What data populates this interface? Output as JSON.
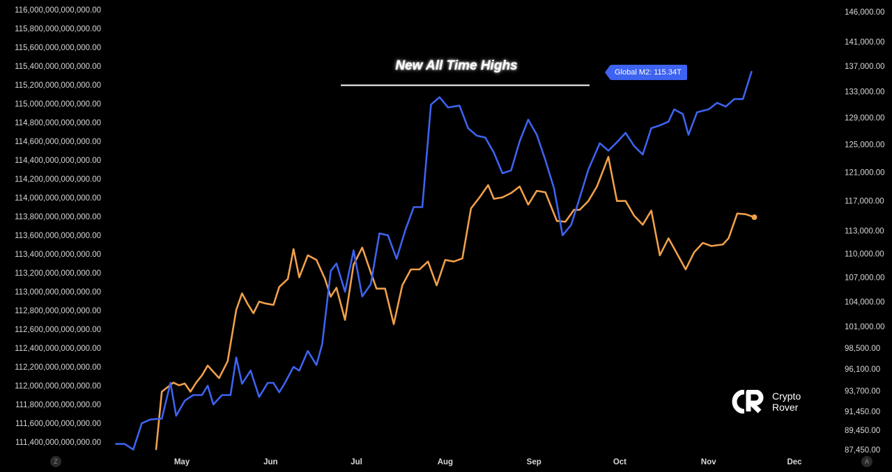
{
  "annotation": "New All Time Highs",
  "price_tag": "Global M2: 115.34T",
  "logo": {
    "line1": "Crypto",
    "line2": "Rover"
  },
  "corner_left": "Z",
  "corner_right": "A",
  "colors": {
    "m2": "#3d63f0",
    "btc": "#f0a04b",
    "background": "#000000",
    "annotation_line": "#ffffff"
  },
  "chart_data": {
    "type": "line",
    "title": "",
    "annotation": "New All Time Highs",
    "x_tick_labels": [
      "May",
      "Jun",
      "Jul",
      "Aug",
      "Sep",
      "Oct",
      "Nov",
      "Dec"
    ],
    "left_axis_ticks": [
      {
        "label": "116,000,000,000,000.00",
        "value": 116000
      },
      {
        "label": "115,800,000,000,000.00",
        "value": 115800
      },
      {
        "label": "115,600,000,000,000.00",
        "value": 115600
      },
      {
        "label": "115,400,000,000,000.00",
        "value": 115400
      },
      {
        "label": "115,200,000,000,000.00",
        "value": 115200
      },
      {
        "label": "115,000,000,000,000.00",
        "value": 115000
      },
      {
        "label": "114,800,000,000,000.00",
        "value": 114800
      },
      {
        "label": "114,600,000,000,000.00",
        "value": 114600
      },
      {
        "label": "114,400,000,000,000.00",
        "value": 114400
      },
      {
        "label": "114,200,000,000,000.00",
        "value": 114200
      },
      {
        "label": "114,000,000,000,000.00",
        "value": 114000
      },
      {
        "label": "113,800,000,000,000.00",
        "value": 113800
      },
      {
        "label": "113,600,000,000,000.00",
        "value": 113600
      },
      {
        "label": "113,400,000,000,000.00",
        "value": 113400
      },
      {
        "label": "113,200,000,000,000.00",
        "value": 113200
      },
      {
        "label": "113,000,000,000,000.00",
        "value": 113000
      },
      {
        "label": "112,800,000,000,000.00",
        "value": 112800
      },
      {
        "label": "112,600,000,000,000.00",
        "value": 112600
      },
      {
        "label": "112,400,000,000,000.00",
        "value": 112400
      },
      {
        "label": "112,200,000,000,000.00",
        "value": 112200
      },
      {
        "label": "112,000,000,000,000.00",
        "value": 112000
      },
      {
        "label": "111,800,000,000,000.00",
        "value": 111800
      },
      {
        "label": "111,600,000,000,000.00",
        "value": 111600
      },
      {
        "label": "111,400,000,000,000.00",
        "value": 111400
      }
    ],
    "right_axis_ticks": [
      {
        "label": "146,000.00",
        "value": 146000
      },
      {
        "label": "141,000.00",
        "value": 141000
      },
      {
        "label": "137,000.00",
        "value": 137000
      },
      {
        "label": "133,000.00",
        "value": 133000
      },
      {
        "label": "129,000.00",
        "value": 129000
      },
      {
        "label": "125,000.00",
        "value": 125000
      },
      {
        "label": "121,000.00",
        "value": 121000
      },
      {
        "label": "117,000.00",
        "value": 117000
      },
      {
        "label": "113,000.00",
        "value": 113000
      },
      {
        "label": "110,000.00",
        "value": 110000
      },
      {
        "label": "107,000.00",
        "value": 107000
      },
      {
        "label": "104,000.00",
        "value": 104000
      },
      {
        "label": "101,000.00",
        "value": 101000
      },
      {
        "label": "98,500.00",
        "value": 98500
      },
      {
        "label": "96,100.00",
        "value": 96100
      },
      {
        "label": "93,700.00",
        "value": 93700
      },
      {
        "label": "91,450.00",
        "value": 91450
      },
      {
        "label": "89,450.00",
        "value": 89450
      },
      {
        "label": "87,450.00",
        "value": 87450
      }
    ],
    "grid": false,
    "legend": "none",
    "series": [
      {
        "axis": "left",
        "color": "#3d63f0",
        "unit": "billions",
        "points": [
          [
            "2025-04-08",
            111380
          ],
          [
            "2025-04-11",
            111380
          ],
          [
            "2025-04-14",
            111320
          ],
          [
            "2025-04-17",
            111600
          ],
          [
            "2025-04-20",
            111640
          ],
          [
            "2025-04-24",
            111650
          ],
          [
            "2025-04-27",
            112030
          ],
          [
            "2025-04-29",
            111680
          ],
          [
            "2025-05-02",
            111840
          ],
          [
            "2025-05-05",
            111900
          ],
          [
            "2025-05-08",
            111900
          ],
          [
            "2025-05-10",
            112000
          ],
          [
            "2025-05-12",
            111800
          ],
          [
            "2025-05-15",
            111900
          ],
          [
            "2025-05-18",
            111900
          ],
          [
            "2025-05-20",
            112300
          ],
          [
            "2025-05-22",
            112020
          ],
          [
            "2025-05-25",
            112160
          ],
          [
            "2025-05-28",
            111880
          ],
          [
            "2025-05-31",
            112030
          ],
          [
            "2025-06-02",
            112030
          ],
          [
            "2025-06-04",
            111930
          ],
          [
            "2025-06-06",
            112030
          ],
          [
            "2025-06-09",
            112200
          ],
          [
            "2025-06-11",
            112160
          ],
          [
            "2025-06-14",
            112370
          ],
          [
            "2025-06-17",
            112220
          ],
          [
            "2025-06-19",
            112440
          ],
          [
            "2025-06-22",
            113220
          ],
          [
            "2025-06-24",
            113300
          ],
          [
            "2025-06-27",
            113000
          ],
          [
            "2025-06-30",
            113440
          ],
          [
            "2025-07-03",
            112950
          ],
          [
            "2025-07-06",
            113080
          ],
          [
            "2025-07-09",
            113620
          ],
          [
            "2025-07-12",
            113600
          ],
          [
            "2025-07-15",
            113350
          ],
          [
            "2025-07-18",
            113650
          ],
          [
            "2025-07-21",
            113900
          ],
          [
            "2025-07-24",
            113900
          ],
          [
            "2025-07-27",
            114990
          ],
          [
            "2025-07-30",
            115070
          ],
          [
            "2025-08-02",
            114960
          ],
          [
            "2025-08-06",
            114980
          ],
          [
            "2025-08-09",
            114740
          ],
          [
            "2025-08-12",
            114660
          ],
          [
            "2025-08-15",
            114640
          ],
          [
            "2025-08-18",
            114480
          ],
          [
            "2025-08-21",
            114260
          ],
          [
            "2025-08-24",
            114290
          ],
          [
            "2025-08-27",
            114600
          ],
          [
            "2025-08-30",
            114830
          ],
          [
            "2025-09-02",
            114670
          ],
          [
            "2025-09-05",
            114400
          ],
          [
            "2025-09-08",
            114100
          ],
          [
            "2025-09-11",
            113600
          ],
          [
            "2025-09-14",
            113710
          ],
          [
            "2025-09-17",
            114000
          ],
          [
            "2025-09-20",
            114300
          ],
          [
            "2025-09-24",
            114580
          ],
          [
            "2025-09-27",
            114500
          ],
          [
            "2025-09-30",
            114590
          ],
          [
            "2025-10-03",
            114690
          ],
          [
            "2025-10-06",
            114550
          ],
          [
            "2025-10-09",
            114460
          ],
          [
            "2025-10-12",
            114740
          ],
          [
            "2025-10-15",
            114770
          ],
          [
            "2025-10-18",
            114810
          ],
          [
            "2025-10-20",
            114940
          ],
          [
            "2025-10-23",
            114890
          ],
          [
            "2025-10-25",
            114670
          ],
          [
            "2025-10-28",
            114910
          ],
          [
            "2025-11-01",
            114940
          ],
          [
            "2025-11-04",
            115010
          ],
          [
            "2025-11-07",
            114970
          ],
          [
            "2025-11-10",
            115050
          ],
          [
            "2025-11-13",
            115050
          ],
          [
            "2025-11-16",
            115340
          ]
        ]
      },
      {
        "axis": "right",
        "color": "#f0a04b",
        "unit": "USD",
        "points": [
          [
            "2025-04-22",
            87500
          ],
          [
            "2025-04-24",
            93600
          ],
          [
            "2025-04-26",
            94100
          ],
          [
            "2025-04-28",
            94600
          ],
          [
            "2025-04-30",
            94300
          ],
          [
            "2025-05-02",
            94500
          ],
          [
            "2025-05-04",
            93600
          ],
          [
            "2025-05-06",
            94600
          ],
          [
            "2025-05-08",
            95400
          ],
          [
            "2025-05-10",
            96500
          ],
          [
            "2025-05-12",
            95800
          ],
          [
            "2025-05-14",
            95100
          ],
          [
            "2025-05-17",
            97000
          ],
          [
            "2025-05-20",
            103000
          ],
          [
            "2025-05-22",
            105000
          ],
          [
            "2025-05-24",
            103700
          ],
          [
            "2025-05-26",
            102600
          ],
          [
            "2025-05-28",
            104000
          ],
          [
            "2025-05-30",
            103800
          ],
          [
            "2025-06-02",
            103600
          ],
          [
            "2025-06-04",
            105800
          ],
          [
            "2025-06-07",
            106800
          ],
          [
            "2025-06-09",
            110600
          ],
          [
            "2025-06-11",
            107000
          ],
          [
            "2025-06-14",
            109800
          ],
          [
            "2025-06-17",
            109200
          ],
          [
            "2025-06-20",
            106800
          ],
          [
            "2025-06-22",
            104600
          ],
          [
            "2025-06-24",
            105700
          ],
          [
            "2025-06-27",
            101800
          ],
          [
            "2025-06-30",
            108600
          ],
          [
            "2025-07-03",
            110800
          ],
          [
            "2025-07-06",
            107600
          ],
          [
            "2025-07-08",
            105600
          ],
          [
            "2025-07-11",
            105600
          ],
          [
            "2025-07-14",
            101300
          ],
          [
            "2025-07-17",
            106000
          ],
          [
            "2025-07-20",
            108000
          ],
          [
            "2025-07-23",
            108000
          ],
          [
            "2025-07-26",
            109000
          ],
          [
            "2025-07-29",
            106000
          ],
          [
            "2025-08-01",
            109200
          ],
          [
            "2025-08-04",
            109000
          ],
          [
            "2025-08-07",
            109400
          ],
          [
            "2025-08-10",
            116000
          ],
          [
            "2025-08-13",
            117500
          ],
          [
            "2025-08-16",
            119200
          ],
          [
            "2025-08-18",
            117300
          ],
          [
            "2025-08-21",
            117500
          ],
          [
            "2025-08-24",
            118100
          ],
          [
            "2025-08-27",
            119000
          ],
          [
            "2025-08-30",
            116500
          ],
          [
            "2025-09-02",
            118400
          ],
          [
            "2025-09-05",
            118200
          ],
          [
            "2025-09-09",
            114300
          ],
          [
            "2025-09-12",
            114200
          ],
          [
            "2025-09-15",
            115800
          ],
          [
            "2025-09-17",
            115800
          ],
          [
            "2025-09-20",
            117000
          ],
          [
            "2025-09-23",
            119000
          ],
          [
            "2025-09-27",
            123200
          ],
          [
            "2025-09-30",
            117000
          ],
          [
            "2025-10-03",
            117000
          ],
          [
            "2025-10-06",
            115000
          ],
          [
            "2025-10-09",
            113800
          ],
          [
            "2025-10-12",
            115700
          ],
          [
            "2025-10-15",
            109800
          ],
          [
            "2025-10-18",
            112000
          ],
          [
            "2025-10-21",
            110000
          ],
          [
            "2025-10-24",
            108000
          ],
          [
            "2025-10-27",
            110200
          ],
          [
            "2025-10-30",
            111400
          ],
          [
            "2025-11-02",
            111000
          ],
          [
            "2025-11-06",
            111200
          ],
          [
            "2025-11-08",
            112000
          ],
          [
            "2025-11-11",
            115300
          ],
          [
            "2025-11-14",
            115200
          ],
          [
            "2025-11-17",
            114800
          ]
        ]
      }
    ]
  }
}
